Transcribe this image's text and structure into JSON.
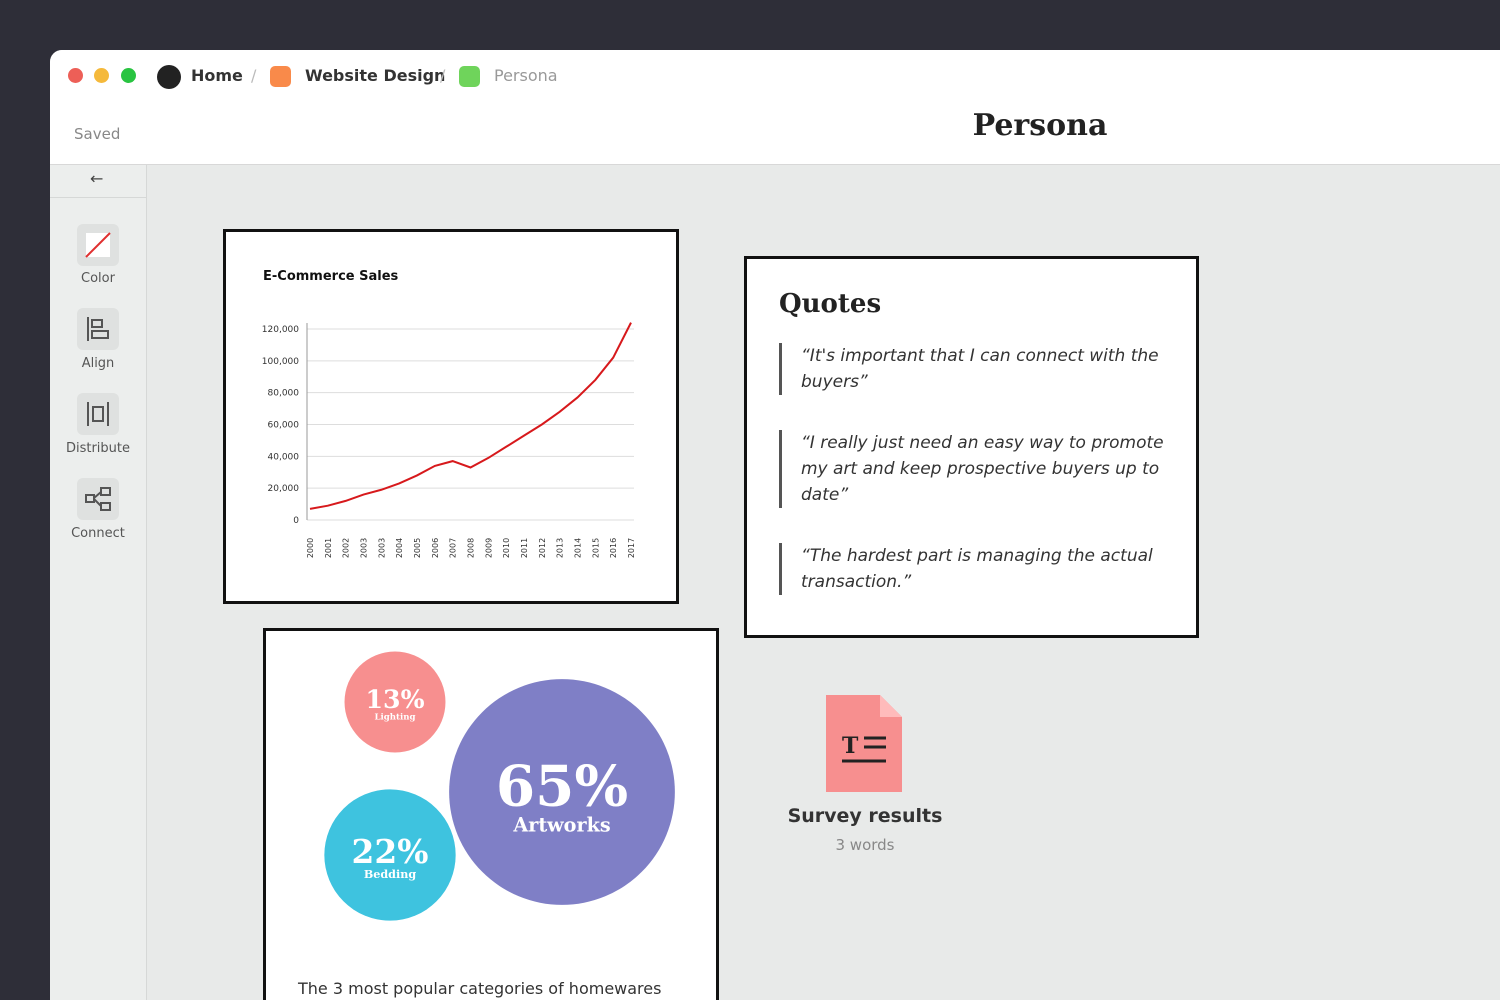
{
  "breadcrumbs": [
    "Home",
    "Website Design",
    "Persona"
  ],
  "toolbar": {
    "status": "Saved",
    "title": "Persona"
  },
  "sidebar": {
    "tools": [
      "Color",
      "Align",
      "Distribute",
      "Connect"
    ]
  },
  "sales_chart": {
    "type": "line",
    "title": "E-Commerce Sales",
    "color": "#d7191c",
    "categories": [
      "2000",
      "2001",
      "2002",
      "2003",
      "2003",
      "2004",
      "2005",
      "2006",
      "2007",
      "2008",
      "2009",
      "2010",
      "2011",
      "2012",
      "2013",
      "2014",
      "2015",
      "2016",
      "2017"
    ],
    "values": [
      7000,
      9000,
      12000,
      16000,
      19000,
      23000,
      28000,
      34000,
      37000,
      33000,
      39000,
      46000,
      53000,
      60000,
      68000,
      77000,
      88000,
      102000,
      124000
    ],
    "ylim": [
      0,
      120000
    ],
    "yticks": [
      0,
      {
        "value": 20000,
        "label": "20,000"
      },
      {
        "value": 40000,
        "label": "40,000"
      },
      {
        "value": 60000,
        "label": "60,000"
      },
      {
        "value": 80000,
        "label": "80,000"
      },
      {
        "value": 100000,
        "label": "100,000"
      },
      {
        "value": 120000,
        "label": "120,000"
      }
    ],
    "grid": true
  },
  "quotes": {
    "title": "Quotes",
    "items": [
      "“It's important that I can connect with the buyers”",
      "“I really just need an easy way to promote my art and keep prospective buyers up to date”",
      "“The hardest part is managing the actual transaction.”"
    ]
  },
  "bubbles": {
    "type": "bubble",
    "categories": [
      "Lighting",
      "Artworks",
      "Bedding"
    ],
    "values": [
      13,
      65,
      22
    ],
    "value_labels": [
      "13%",
      "65%",
      "22%"
    ],
    "colors": [
      "#f78f8f",
      "#7f7fc6",
      "#3ec3df"
    ],
    "caption": "The 3 most popular categories of homewares"
  },
  "file": {
    "name": "Survey results",
    "meta": "3 words"
  }
}
